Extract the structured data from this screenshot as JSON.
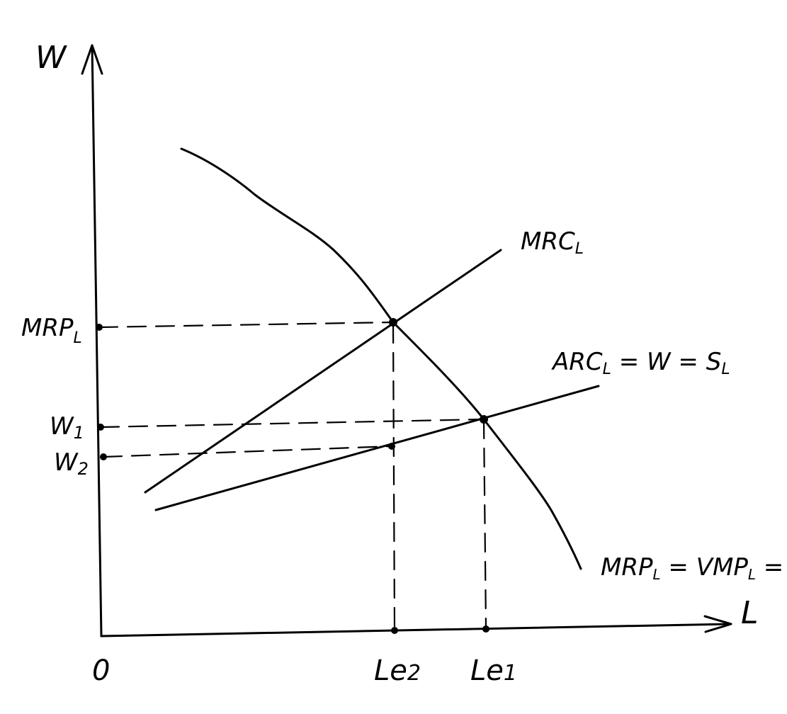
{
  "axes": {
    "y_label": "W",
    "x_label": "L",
    "origin_label": "0"
  },
  "curves": {
    "demand_label": "MRP",
    "demand_label_sub": "L",
    "demand_label_rest": " = VMP",
    "demand_label_sub2": "L",
    "demand_label_tail": " = i",
    "mrc_label": "MRC",
    "mrc_label_sub": "L",
    "supply_label": "ARC",
    "supply_label_sub": "L",
    "supply_label_mid": " = W = S",
    "supply_label_sub2": "L"
  },
  "y_ticks": {
    "mrp": "MRP",
    "mrp_sub": "L",
    "w1": "W",
    "w1_sub": "1",
    "w2": "W",
    "w2_sub": "2"
  },
  "x_ticks": {
    "le2": "Le",
    "le2_sub": "2",
    "le1": "Le",
    "le1_sub": "1"
  }
}
